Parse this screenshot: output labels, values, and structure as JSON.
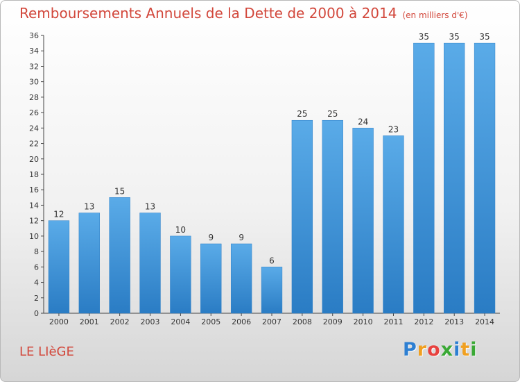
{
  "chart_data": {
    "type": "bar",
    "title": "Remboursements Annuels de la Dette de 2000 à 2014",
    "subtitle": "(en milliers d'€)",
    "xlabel": "",
    "ylabel": "",
    "categories": [
      "2000",
      "2001",
      "2002",
      "2003",
      "2004",
      "2005",
      "2006",
      "2007",
      "2008",
      "2009",
      "2010",
      "2011",
      "2012",
      "2013",
      "2014"
    ],
    "values": [
      12,
      13,
      15,
      13,
      10,
      9,
      9,
      6,
      25,
      25,
      24,
      23,
      35,
      35,
      35
    ],
    "ylim": [
      0,
      36
    ],
    "ytick_step": 2,
    "grid": false,
    "bar_color": "#4d9fe0",
    "bar_color_dark": "#2a7cc4"
  },
  "footer": {
    "commune": "LE LIèGE",
    "logo_letters": [
      "P",
      "r",
      "o",
      "x",
      "i",
      "t",
      "i"
    ],
    "logo_colors": [
      "#2d7fd2",
      "#f0a021",
      "#e8423f",
      "#3aa935",
      "#2d7fd2",
      "#f0a021",
      "#3aa935"
    ]
  }
}
